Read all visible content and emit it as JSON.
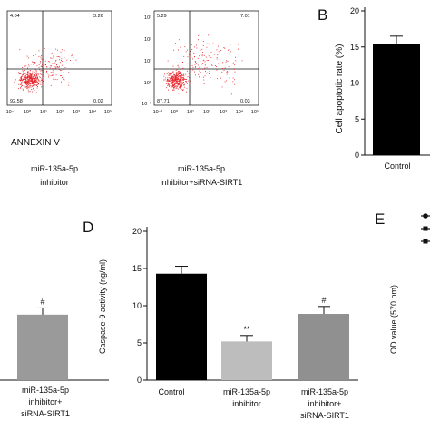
{
  "panel_A": {
    "x_axis_label": "ANNEXIN V",
    "plot_1": {
      "quadrants": [
        "4.04",
        "3.26",
        "92.58",
        "0.02"
      ],
      "caption_line1": "miR-135a-5p",
      "caption_line2": "inhibitor"
    },
    "plot_2": {
      "quadrants": [
        "5.29",
        "7.01",
        "87.71",
        "0.03"
      ],
      "caption_line1": "miR-135a-5p",
      "caption_line2": "inhibitor+siRNA-SIRT1"
    },
    "x_ticks": [
      "10⁻¹",
      "10⁰",
      "10¹",
      "10²",
      "10³",
      "10⁴",
      "10⁵"
    ],
    "y_ticks": [
      "10³",
      "10²",
      "10¹",
      "10⁰",
      "10⁻¹"
    ],
    "dot_color": "#e8242a"
  },
  "panel_B": {
    "letter": "B",
    "chart_data": {
      "type": "bar",
      "ylabel": "Cell apoptotic rate (%)",
      "categories": [
        "Control"
      ],
      "values": [
        15.4
      ],
      "errors": [
        1.1
      ],
      "yticks": [
        "0",
        "5",
        "10",
        "15",
        "20"
      ],
      "ylim": [
        0,
        20
      ],
      "bar_color": "#000000"
    }
  },
  "panel_C_partial": {
    "chart_data": {
      "type": "bar",
      "values": [
        8.8
      ],
      "errors": [
        0.9
      ],
      "ylim": [
        0,
        20
      ]
    },
    "significance": "#",
    "caption_line1": "miR-135a-5p",
    "caption_line2": "inhibitor+",
    "caption_line3": "siRNA-SIRT1",
    "bar_color": "#9a9a9a"
  },
  "panel_D": {
    "letter": "D",
    "chart_data": {
      "type": "bar",
      "ylabel": "Caspase-9 activity (ng/ml)",
      "categories": [
        "Control",
        "miR-135a-5p inhibitor",
        "miR-135a-5p inhibitor+ siRNA-SIRT1"
      ],
      "values": [
        14.3,
        5.2,
        8.9
      ],
      "errors": [
        1.0,
        0.8,
        1.0
      ],
      "significance": [
        "",
        "**",
        "#"
      ],
      "colors": [
        "#000000",
        "#bdbdbd",
        "#909090"
      ],
      "yticks": [
        "0",
        "5",
        "10",
        "15",
        "20"
      ],
      "ylim": [
        0,
        20
      ]
    },
    "cat_labels": {
      "c1": "Control",
      "c2_l1": "miR-135a-5p",
      "c2_l2": "inhibitor",
      "c3_l1": "miR-135a-5p",
      "c3_l2": "inhibitor+",
      "c3_l3": "siRNA-SIRT1"
    }
  },
  "panel_E": {
    "letter": "E",
    "ylabel": "OD value (570 nm)"
  }
}
